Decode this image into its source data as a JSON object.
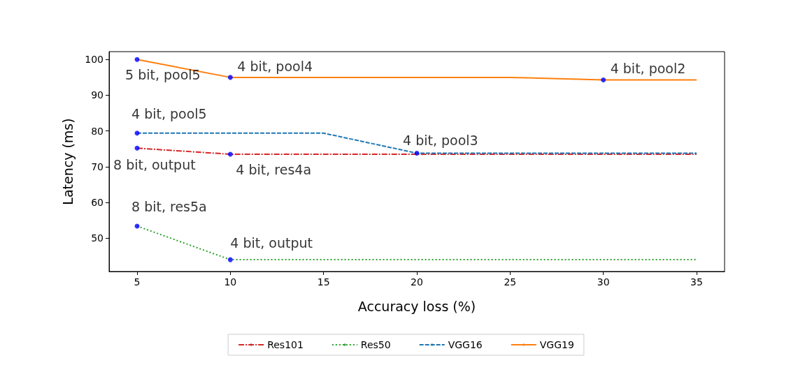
{
  "chart_data": {
    "type": "line",
    "xlabel": "Accuracy loss (%)",
    "ylabel": "Latency (ms)",
    "x": [
      5,
      10,
      15,
      20,
      25,
      30,
      35
    ],
    "xlim": [
      3.5,
      36.5
    ],
    "xticks": [
      5,
      10,
      15,
      20,
      25,
      30,
      35
    ],
    "ylim": [
      40.7,
      102.2
    ],
    "yticks": [
      50,
      60,
      70,
      80,
      90,
      100
    ],
    "grid": false,
    "legend": "bottom",
    "marker": "none",
    "series": [
      {
        "name": "Res101",
        "color": "#d62728",
        "line_style": "dashdot",
        "values": [
          75.2,
          73.5,
          73.5,
          73.5,
          73.5,
          73.5,
          73.5
        ]
      },
      {
        "name": "Res50",
        "color": "#2ca02c",
        "line_style": "dotted",
        "values": [
          53.4,
          44.0,
          44.0,
          44.0,
          44.0,
          44.0,
          44.0
        ]
      },
      {
        "name": "VGG16",
        "color": "#1f77b4",
        "line_style": "dashed",
        "values": [
          79.4,
          79.4,
          79.4,
          73.8,
          73.8,
          73.8,
          73.8
        ]
      },
      {
        "name": "VGG19",
        "color": "#ff7f0e",
        "line_style": "solid",
        "values": [
          100,
          95,
          95,
          95,
          95,
          94.3,
          94.3
        ]
      },
      {
        "type": "scatter",
        "color": "#0000ff",
        "marker": "circle",
        "x": [
          5,
          10,
          30,
          5,
          20,
          5,
          10,
          5,
          10
        ],
        "values": [
          100,
          95,
          94.3,
          79.4,
          73.8,
          75.2,
          73.5,
          53.4,
          44.0
        ]
      }
    ],
    "annotations": [
      {
        "text": "5 bit, pool5",
        "x": 5,
        "y": 100
      },
      {
        "text": "4 bit, pool4",
        "x": 10,
        "y": 95
      },
      {
        "text": "4 bit, pool2",
        "x": 30,
        "y": 94.3
      },
      {
        "text": "4 bit, pool5",
        "x": 5,
        "y": 79.4
      },
      {
        "text": "4 bit, pool3",
        "x": 20,
        "y": 73.8
      },
      {
        "text": "8 bit, output",
        "x": 5,
        "y": 75.2
      },
      {
        "text": "4 bit, res4a",
        "x": 10,
        "y": 73.5
      },
      {
        "text": "8 bit, res5a",
        "x": 5,
        "y": 53.4
      },
      {
        "text": "4 bit, output",
        "x": 10,
        "y": 44.0
      }
    ]
  }
}
